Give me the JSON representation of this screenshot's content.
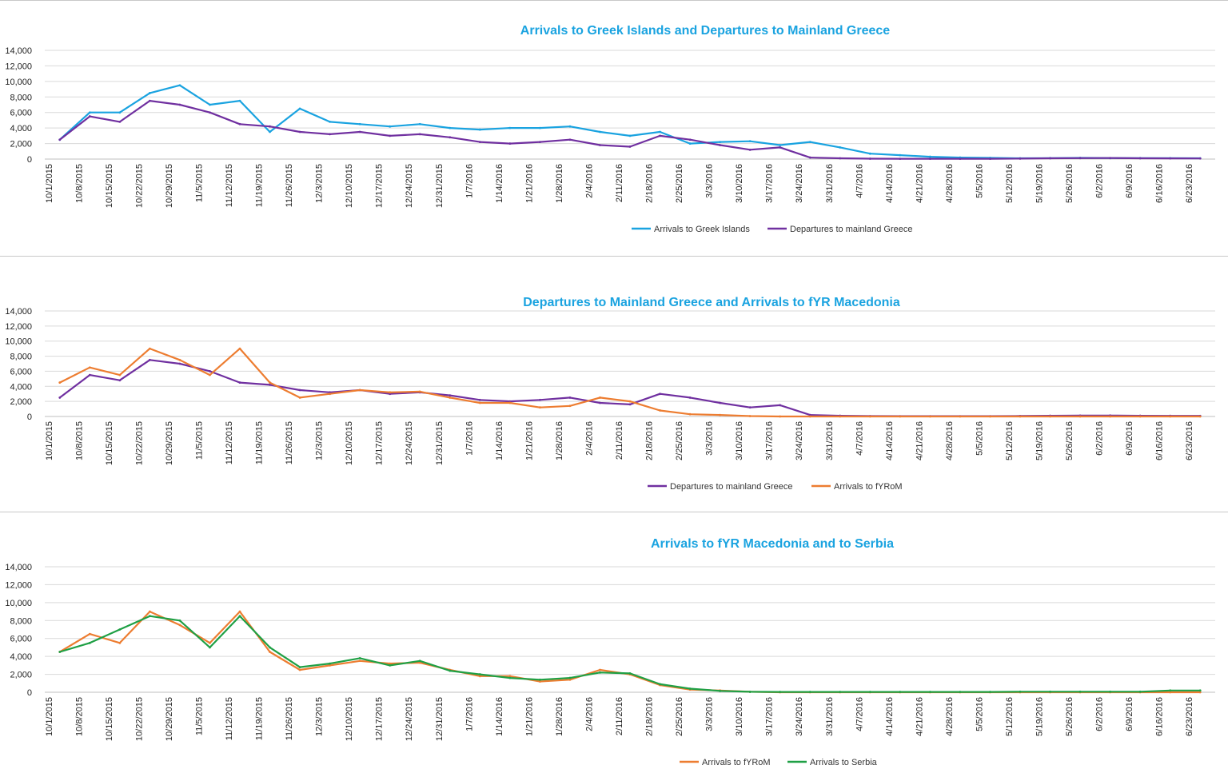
{
  "chart_data": [
    {
      "type": "line",
      "title": "Arrivals to Greek Islands and Departures to Mainland Greece",
      "xlabel": "",
      "ylabel": "",
      "ylim": [
        0,
        14000
      ],
      "yticks": [
        "0",
        "2,000",
        "4,000",
        "6,000",
        "8,000",
        "10,000",
        "12,000",
        "14,000"
      ],
      "categories": [
        "10/1/2015",
        "10/8/2015",
        "10/15/2015",
        "10/22/2015",
        "10/29/2015",
        "11/5/2015",
        "11/12/2015",
        "11/19/2015",
        "11/26/2015",
        "12/3/2015",
        "12/10/2015",
        "12/17/2015",
        "12/24/2015",
        "12/31/2015",
        "1/7/2016",
        "1/14/2016",
        "1/21/2016",
        "1/28/2016",
        "2/4/2016",
        "2/11/2016",
        "2/18/2016",
        "2/25/2016",
        "3/3/2016",
        "3/10/2016",
        "3/17/2016",
        "3/24/2016",
        "3/31/2016",
        "4/7/2016",
        "4/14/2016",
        "4/21/2016",
        "4/28/2016",
        "5/5/2016",
        "5/12/2016",
        "5/19/2016",
        "5/26/2016",
        "6/2/2016",
        "6/9/2016",
        "6/16/2016",
        "6/23/2016"
      ],
      "legend_position": "bottom",
      "series": [
        {
          "name": "Arrivals to Greek Islands",
          "color": "#1aa3e0",
          "values": [
            2500,
            6000,
            6000,
            8500,
            9500,
            7000,
            7500,
            3500,
            6500,
            4800,
            4500,
            4200,
            4500,
            4000,
            3800,
            4000,
            4000,
            4200,
            3500,
            3000,
            3500,
            2000,
            2200,
            2300,
            1800,
            2200,
            1500,
            700,
            500,
            300,
            200,
            150,
            100,
            120,
            150,
            130,
            120,
            110,
            100
          ]
        },
        {
          "name": "Departures to mainland Greece",
          "color": "#7030a0",
          "values": [
            2500,
            5500,
            4800,
            7500,
            7000,
            6000,
            4500,
            4200,
            3500,
            3200,
            3500,
            3000,
            3200,
            2800,
            2200,
            2000,
            2200,
            2500,
            1800,
            1600,
            3000,
            2500,
            1800,
            1200,
            1500,
            200,
            100,
            50,
            40,
            40,
            40,
            40,
            60,
            100,
            120,
            130,
            100,
            90,
            80
          ]
        }
      ]
    },
    {
      "type": "line",
      "title": "Departures to Mainland Greece and Arrivals to fYR Macedonia",
      "xlabel": "",
      "ylabel": "",
      "ylim": [
        0,
        14000
      ],
      "yticks": [
        "0",
        "2,000",
        "4,000",
        "6,000",
        "8,000",
        "10,000",
        "12,000",
        "14,000"
      ],
      "categories": [
        "10/1/2015",
        "10/8/2015",
        "10/15/2015",
        "10/22/2015",
        "10/29/2015",
        "11/5/2015",
        "11/12/2015",
        "11/19/2015",
        "11/26/2015",
        "12/3/2015",
        "12/10/2015",
        "12/17/2015",
        "12/24/2015",
        "12/31/2015",
        "1/7/2016",
        "1/14/2016",
        "1/21/2016",
        "1/28/2016",
        "2/4/2016",
        "2/11/2016",
        "2/18/2016",
        "2/25/2016",
        "3/3/2016",
        "3/10/2016",
        "3/17/2016",
        "3/24/2016",
        "3/31/2016",
        "4/7/2016",
        "4/14/2016",
        "4/21/2016",
        "4/28/2016",
        "5/5/2016",
        "5/12/2016",
        "5/19/2016",
        "5/26/2016",
        "6/2/2016",
        "6/9/2016",
        "6/16/2016",
        "6/23/2016"
      ],
      "legend_position": "bottom",
      "series": [
        {
          "name": "Departures to mainland Greece",
          "color": "#7030a0",
          "values": [
            2500,
            5500,
            4800,
            7500,
            7000,
            6000,
            4500,
            4200,
            3500,
            3200,
            3500,
            3000,
            3200,
            2800,
            2200,
            2000,
            2200,
            2500,
            1800,
            1600,
            3000,
            2500,
            1800,
            1200,
            1500,
            200,
            100,
            50,
            40,
            40,
            40,
            40,
            60,
            100,
            120,
            130,
            100,
            90,
            80
          ]
        },
        {
          "name": "Arrivals to fYRoM",
          "color": "#ed7d31",
          "values": [
            4500,
            6500,
            5500,
            9000,
            7500,
            5500,
            9000,
            4500,
            2500,
            3000,
            3500,
            3200,
            3300,
            2500,
            1800,
            1800,
            1200,
            1400,
            2500,
            2000,
            800,
            300,
            200,
            50,
            0,
            0,
            0,
            0,
            0,
            0,
            0,
            0,
            0,
            0,
            0,
            0,
            0,
            0,
            0
          ]
        }
      ]
    },
    {
      "type": "line",
      "title": "Arrivals to fYR Macedonia and to Serbia",
      "xlabel": "",
      "ylabel": "",
      "ylim": [
        0,
        14000
      ],
      "yticks": [
        "0",
        "2,000",
        "4,000",
        "6,000",
        "8,000",
        "10,000",
        "12,000",
        "14,000"
      ],
      "categories": [
        "10/1/2015",
        "10/8/2015",
        "10/15/2015",
        "10/22/2015",
        "10/29/2015",
        "11/5/2015",
        "11/12/2015",
        "11/19/2015",
        "11/26/2015",
        "12/3/2015",
        "12/10/2015",
        "12/17/2015",
        "12/24/2015",
        "12/31/2015",
        "1/7/2016",
        "1/14/2016",
        "1/21/2016",
        "1/28/2016",
        "2/4/2016",
        "2/11/2016",
        "2/18/2016",
        "2/25/2016",
        "3/3/2016",
        "3/10/2016",
        "3/17/2016",
        "3/24/2016",
        "3/31/2016",
        "4/7/2016",
        "4/14/2016",
        "4/21/2016",
        "4/28/2016",
        "5/5/2016",
        "5/12/2016",
        "5/19/2016",
        "5/26/2016",
        "6/2/2016",
        "6/9/2016",
        "6/16/2016",
        "6/23/2016"
      ],
      "legend_position": "bottom",
      "series": [
        {
          "name": "Arrivals to fYRoM",
          "color": "#ed7d31",
          "values": [
            4500,
            6500,
            5500,
            9000,
            7500,
            5500,
            9000,
            4500,
            2500,
            3000,
            3500,
            3200,
            3300,
            2500,
            1800,
            1800,
            1200,
            1400,
            2500,
            2000,
            800,
            300,
            200,
            50,
            0,
            0,
            0,
            0,
            0,
            0,
            0,
            0,
            0,
            0,
            0,
            0,
            0,
            0,
            0
          ]
        },
        {
          "name": "Arrivals to Serbia",
          "color": "#1fa045",
          "values": [
            4500,
            5500,
            7000,
            8500,
            8000,
            5000,
            8500,
            5000,
            2800,
            3200,
            3800,
            3000,
            3500,
            2400,
            2000,
            1600,
            1400,
            1600,
            2200,
            2100,
            900,
            400,
            150,
            50,
            40,
            40,
            40,
            40,
            40,
            40,
            40,
            40,
            60,
            60,
            60,
            60,
            60,
            200,
            200
          ]
        }
      ]
    }
  ]
}
